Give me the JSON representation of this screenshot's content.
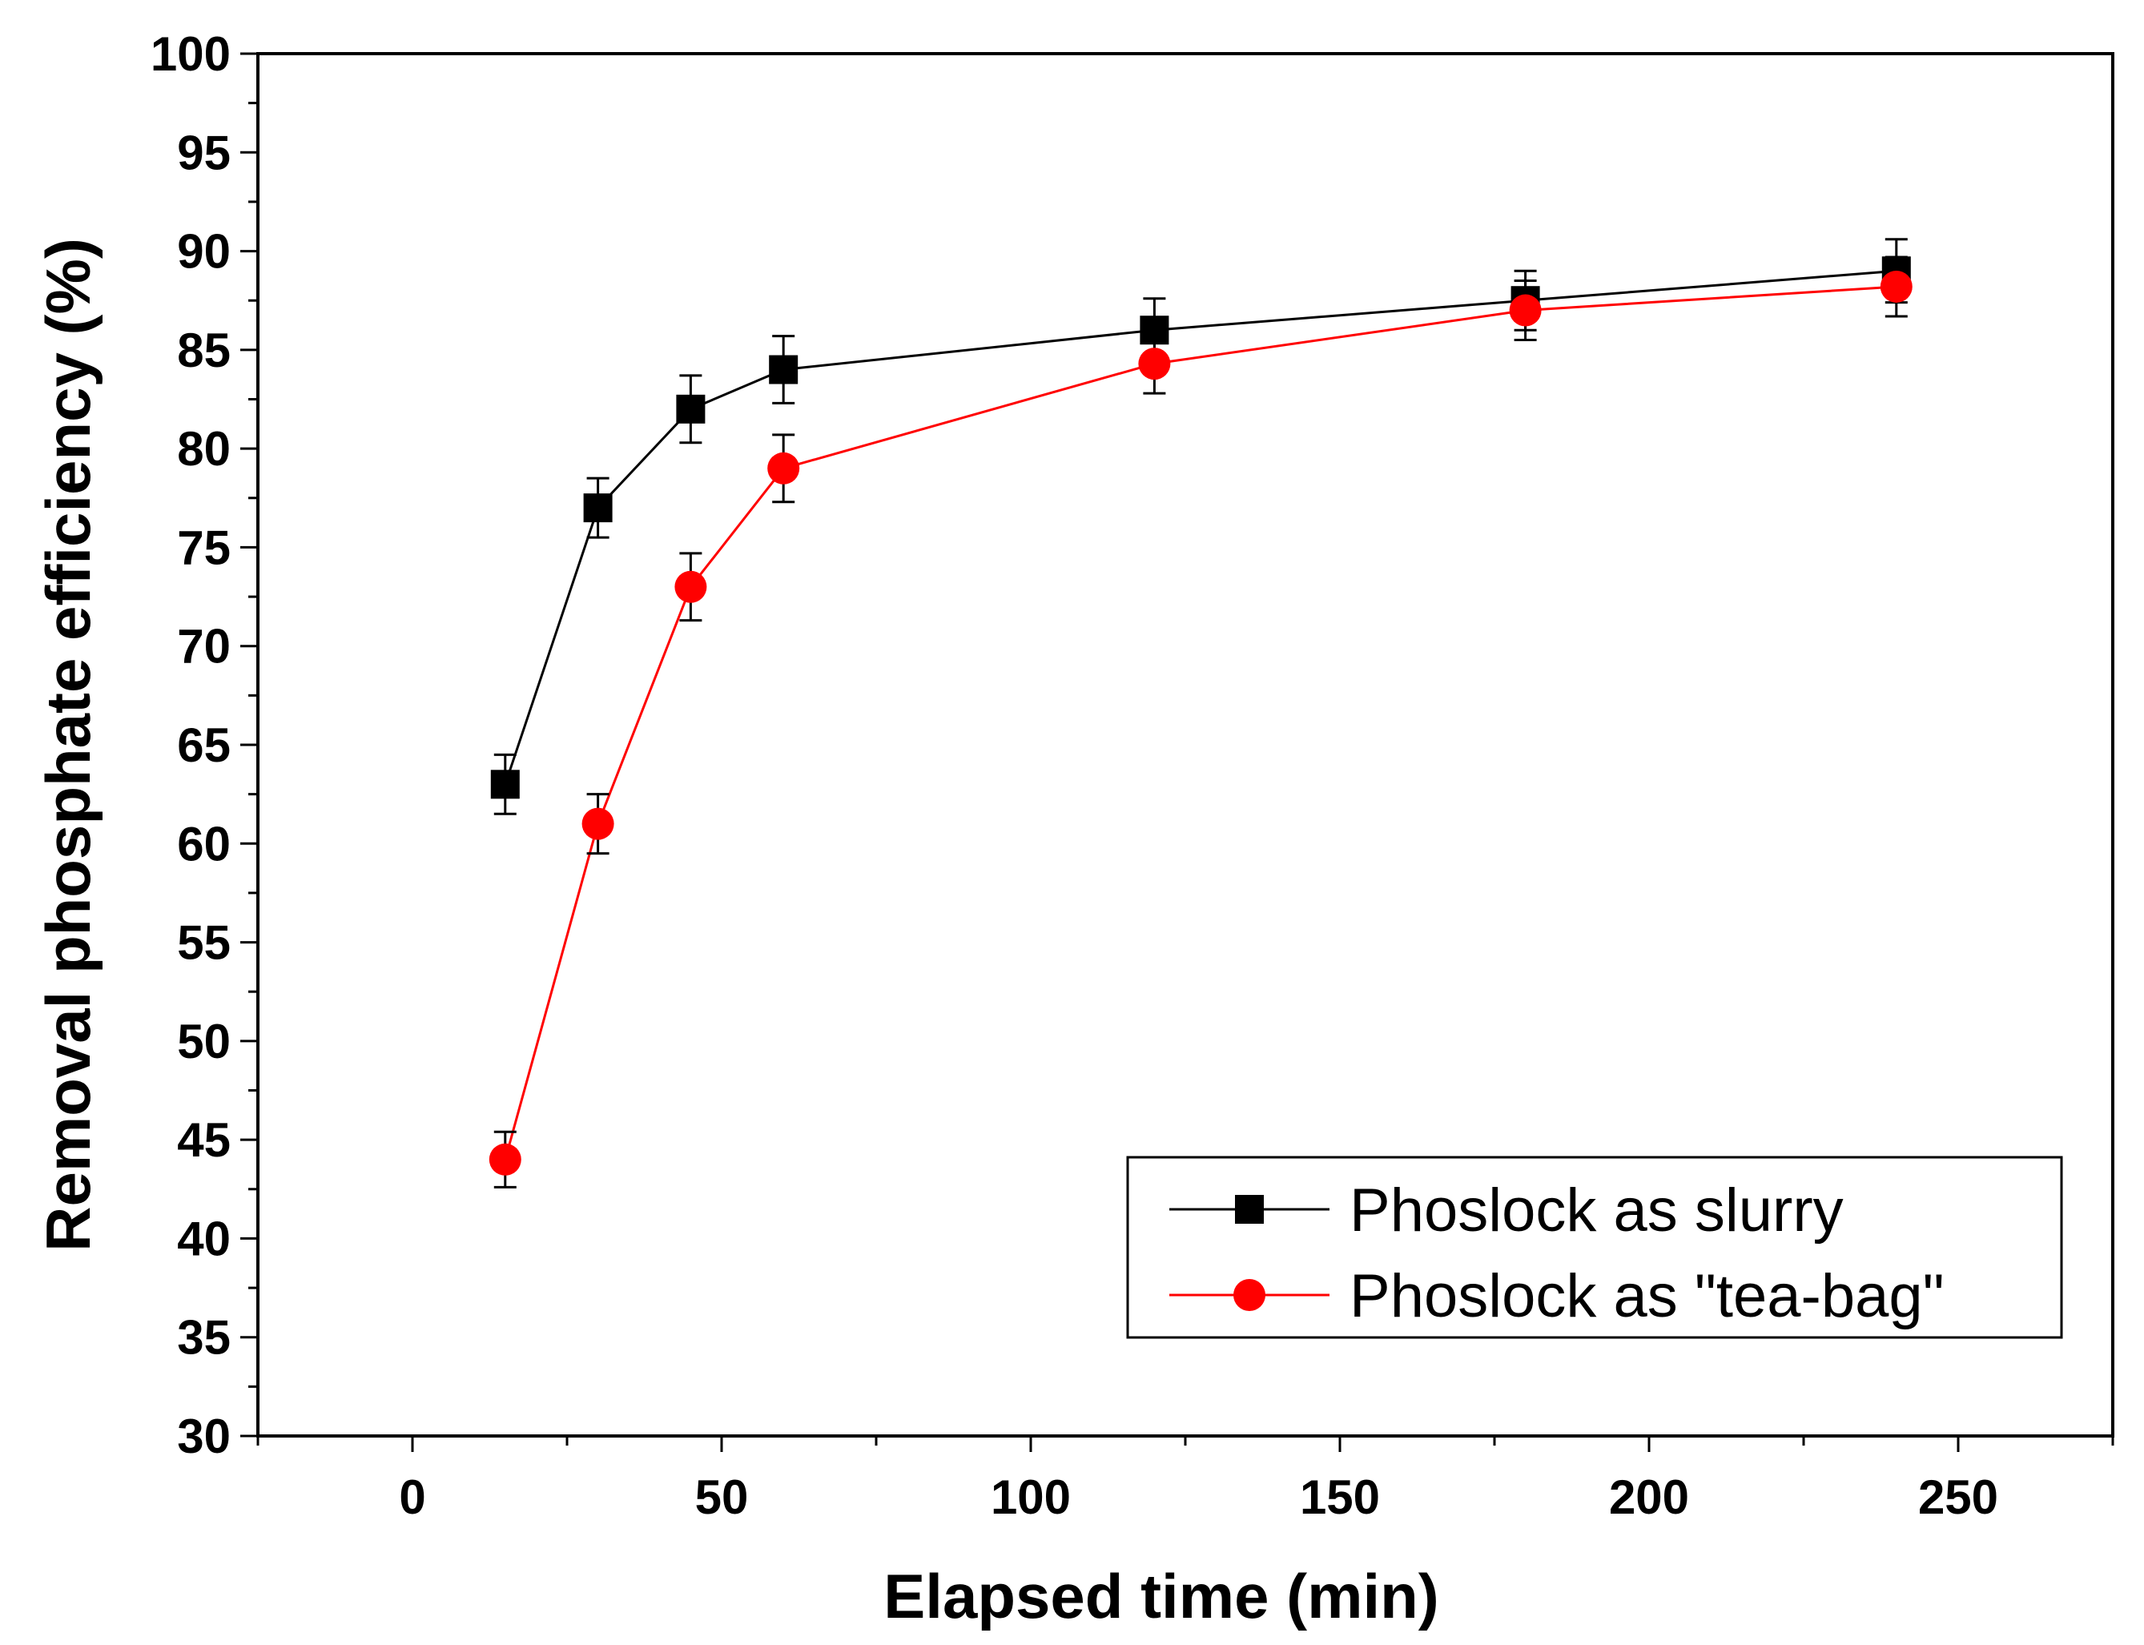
{
  "chart_data": {
    "type": "line",
    "title": "",
    "xlabel": "Elapsed time (min)",
    "ylabel": "Removal phosphate efficiency (%)",
    "xlim": [
      -25,
      275
    ],
    "ylim": [
      30,
      100
    ],
    "xticks": [
      0,
      50,
      100,
      150,
      200,
      250
    ],
    "xtick_labels": [
      "0",
      "50",
      "100",
      "150",
      "200",
      "250"
    ],
    "yticks": [
      30,
      35,
      40,
      45,
      50,
      55,
      60,
      65,
      70,
      75,
      80,
      85,
      90,
      95,
      100
    ],
    "ytick_labels": [
      "30",
      "35",
      "40",
      "45",
      "50",
      "55",
      "60",
      "65",
      "70",
      "75",
      "80",
      "85",
      "90",
      "95",
      "100"
    ],
    "grid": false,
    "legend_position": "bottom-right",
    "x": [
      15,
      30,
      45,
      60,
      120,
      180,
      240
    ],
    "series": [
      {
        "name": "Phoslock as slurry",
        "marker": "square",
        "color": "#000000",
        "values": [
          63,
          77,
          82,
          84,
          86,
          87.5,
          89
        ],
        "errors": [
          1.5,
          1.5,
          1.7,
          1.7,
          1.6,
          1.5,
          1.6
        ]
      },
      {
        "name": "Phoslock as \"tea-bag\"",
        "marker": "circle",
        "color": "#ff0000",
        "values": [
          44,
          61,
          73,
          79,
          84.3,
          87,
          88.2
        ],
        "errors": [
          1.4,
          1.5,
          1.7,
          1.7,
          1.5,
          1.5,
          1.5
        ]
      }
    ]
  }
}
